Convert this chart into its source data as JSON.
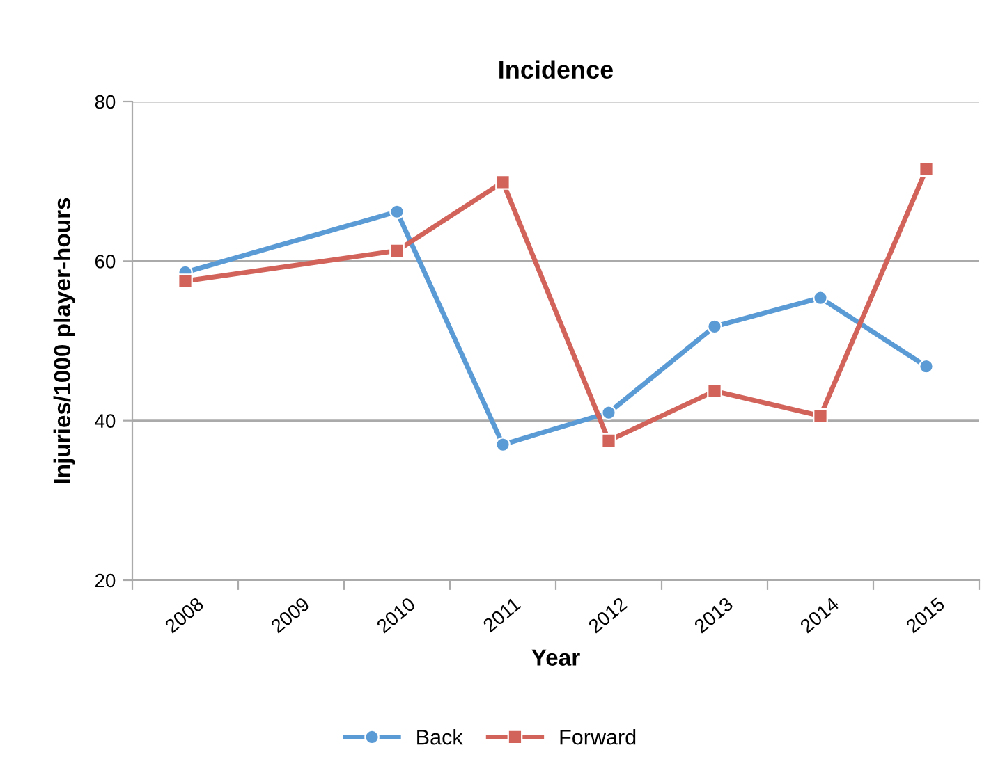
{
  "chart_data": {
    "type": "line",
    "title": "Incidence",
    "xlabel": "Year",
    "ylabel": "Injuries/1000 player-hours",
    "categories": [
      "2008",
      "2009",
      "2010",
      "2011",
      "2012",
      "2013",
      "2014",
      "2015"
    ],
    "series": [
      {
        "name": "Back",
        "color": "#5b9bd5",
        "marker": "circle",
        "values": [
          58.6,
          null,
          66.2,
          37.0,
          41.0,
          51.8,
          55.4,
          46.8
        ]
      },
      {
        "name": "Forward",
        "color": "#d2635b",
        "marker": "square",
        "values": [
          57.5,
          null,
          61.3,
          69.9,
          37.5,
          43.7,
          40.6,
          71.5
        ]
      }
    ],
    "ylim": [
      20,
      80
    ],
    "yticks": [
      20,
      40,
      60,
      80
    ],
    "grid": "y",
    "legend": "bottom",
    "line_style": "solid"
  }
}
